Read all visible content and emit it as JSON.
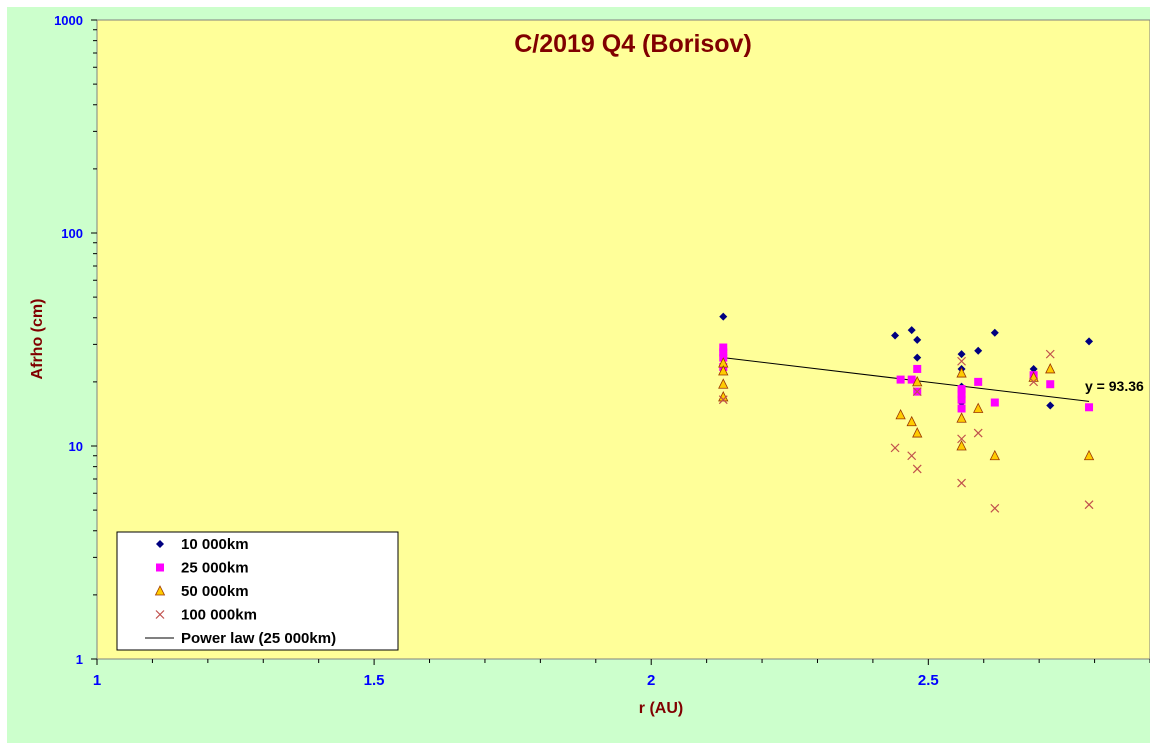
{
  "colors": {
    "chart_area": "#ccffcc",
    "plot_area": "#ffff99",
    "title": "#800000",
    "ticks": "#0000ff",
    "series_10000": "#000080",
    "series_25000": "#ff00ff",
    "series_50000_fill": "#ffcc00",
    "series_50000_edge": "#993300",
    "series_100000": "#c0504d"
  },
  "chart_data": {
    "type": "scatter",
    "title": "C/2019 Q4 (Borisov)",
    "xlabel": "r (AU)",
    "ylabel": "Afrho (cm)",
    "xlim": [
      1,
      2.9
    ],
    "ylim": [
      1,
      1000
    ],
    "y_scale": "log",
    "x_ticks": [
      "1",
      "1.5",
      "2",
      "2.5"
    ],
    "y_ticks": [
      "1",
      "10",
      "100",
      "1000"
    ],
    "legend_position": "bottom-left",
    "equation_label": "y = 93.36",
    "series": [
      {
        "name": "10 000km",
        "marker": "diamond",
        "points": [
          [
            2.13,
            40.5
          ],
          [
            2.13,
            27.5
          ],
          [
            2.44,
            33
          ],
          [
            2.47,
            35
          ],
          [
            2.48,
            31.5
          ],
          [
            2.48,
            26
          ],
          [
            2.56,
            27
          ],
          [
            2.56,
            23
          ],
          [
            2.56,
            19
          ],
          [
            2.56,
            16
          ],
          [
            2.59,
            28
          ],
          [
            2.62,
            34
          ],
          [
            2.69,
            23
          ],
          [
            2.72,
            15.5
          ],
          [
            2.79,
            31
          ]
        ]
      },
      {
        "name": "25 000km",
        "marker": "square",
        "points": [
          [
            2.13,
            29
          ],
          [
            2.13,
            27.5
          ],
          [
            2.13,
            26
          ],
          [
            2.13,
            23.5
          ],
          [
            2.45,
            20.5
          ],
          [
            2.47,
            20.5
          ],
          [
            2.48,
            23
          ],
          [
            2.48,
            18
          ],
          [
            2.56,
            18.5
          ],
          [
            2.56,
            17.5
          ],
          [
            2.56,
            16.5
          ],
          [
            2.56,
            15
          ],
          [
            2.59,
            20
          ],
          [
            2.62,
            16
          ],
          [
            2.69,
            21.5
          ],
          [
            2.72,
            19.5
          ],
          [
            2.79,
            15.2
          ]
        ]
      },
      {
        "name": "50 000km",
        "marker": "triangle",
        "points": [
          [
            2.13,
            24.5
          ],
          [
            2.13,
            22.5
          ],
          [
            2.13,
            19.5
          ],
          [
            2.13,
            17
          ],
          [
            2.45,
            14
          ],
          [
            2.47,
            13
          ],
          [
            2.48,
            20
          ],
          [
            2.48,
            11.5
          ],
          [
            2.56,
            22
          ],
          [
            2.56,
            13.5
          ],
          [
            2.56,
            10
          ],
          [
            2.59,
            15
          ],
          [
            2.62,
            9
          ],
          [
            2.69,
            21
          ],
          [
            2.72,
            23
          ],
          [
            2.79,
            9
          ]
        ]
      },
      {
        "name": "100 000km",
        "marker": "cross",
        "points": [
          [
            2.13,
            16.5
          ],
          [
            2.44,
            9.8
          ],
          [
            2.47,
            9
          ],
          [
            2.48,
            18
          ],
          [
            2.48,
            7.8
          ],
          [
            2.56,
            25
          ],
          [
            2.56,
            10.8
          ],
          [
            2.56,
            6.7
          ],
          [
            2.59,
            11.5
          ],
          [
            2.62,
            5.1
          ],
          [
            2.69,
            20
          ],
          [
            2.72,
            27
          ],
          [
            2.79,
            5.3
          ]
        ]
      }
    ],
    "trendline": {
      "name": "Power law (25 000km)",
      "points": [
        [
          2.13,
          26
        ],
        [
          2.79,
          16.2
        ]
      ]
    }
  }
}
